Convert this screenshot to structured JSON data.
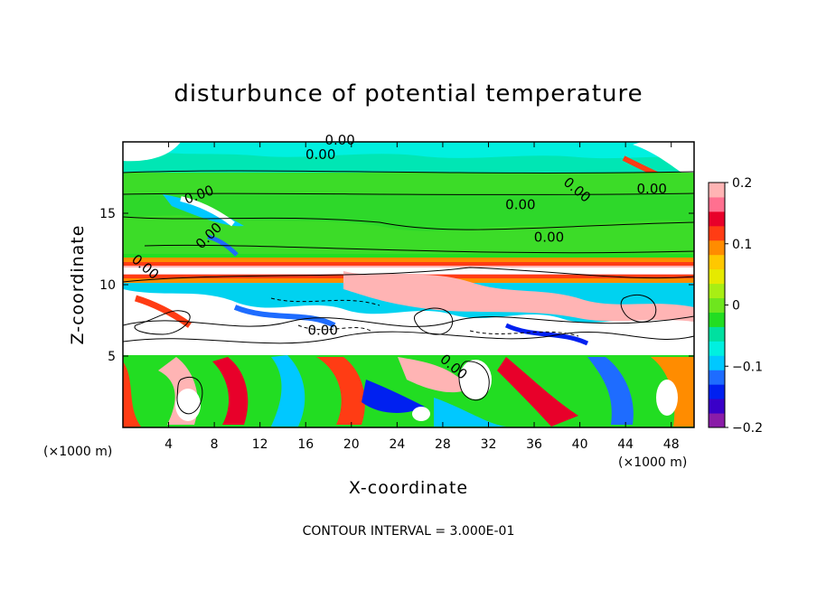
{
  "chart_data": {
    "type": "heatmap",
    "title": "disturbunce of potential temperature",
    "xlabel": "X-coordinate",
    "ylabel": "Z-coordinate",
    "x_unit_left": "(×1000 m)",
    "x_unit_right": "(×1000 m)",
    "xlim": [
      0,
      50
    ],
    "ylim": [
      0,
      20
    ],
    "x_ticks": [
      4,
      8,
      12,
      16,
      20,
      24,
      28,
      32,
      36,
      40,
      44,
      48
    ],
    "y_ticks": [
      5,
      10,
      15
    ],
    "colorbar": {
      "range": [
        -0.2,
        0.2
      ],
      "ticks": [
        {
          "value": 0.2,
          "label": "0.2"
        },
        {
          "value": 0.1,
          "label": "0.1"
        },
        {
          "value": 0,
          "label": "0"
        },
        {
          "value": -0.1,
          "label": "−0.1"
        },
        {
          "value": -0.2,
          "label": "−0.2"
        }
      ],
      "colors": [
        "#8a1ca8",
        "#3a00c8",
        "#0020f0",
        "#1e6cff",
        "#00c8ff",
        "#00f0e0",
        "#00e0a0",
        "#22dd22",
        "#6ee61e",
        "#a8ee14",
        "#e6ea00",
        "#ffc800",
        "#ff8c00",
        "#ff3c14",
        "#e8002a",
        "#ff7090",
        "#ffb4b4"
      ]
    },
    "contour_labels": [
      "0.00",
      "0.00",
      "0.00",
      "0.00",
      "0.00",
      "0.00",
      "0.00",
      "0.00",
      "0.00",
      "0.00",
      "0.00"
    ],
    "annotation": "CONTOUR INTERVAL = 3.000E-01"
  }
}
